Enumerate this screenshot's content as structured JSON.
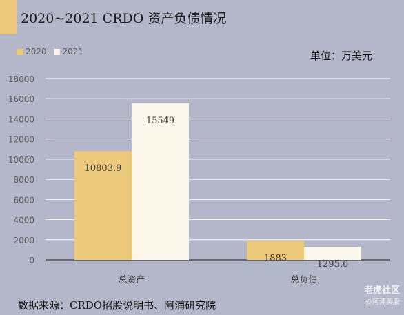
{
  "chart_data": {
    "type": "bar",
    "title": "2020~2021 CRDO 资产负债情况",
    "unit": "单位：万美元",
    "categories": [
      "总资产",
      "总负债"
    ],
    "series": [
      {
        "name": "2020",
        "values": [
          10803.9,
          1883
        ],
        "labels": [
          "10803.9",
          "1883"
        ],
        "color": "#edc97c"
      },
      {
        "name": "2021",
        "values": [
          15549,
          1295.6
        ],
        "labels": [
          "15549",
          "1295.6"
        ],
        "color": "#fcf7ea"
      }
    ],
    "ylim": [
      0,
      18000
    ],
    "yticks": [
      0,
      2000,
      4000,
      6000,
      8000,
      10000,
      12000,
      14000,
      16000,
      18000
    ],
    "grid": true,
    "legend_position": "top-left"
  },
  "source": "数据来源：CRDO招股说明书、阿浦研究院",
  "watermark": {
    "main": "老虎社区",
    "sub": "@阿浦美股"
  }
}
